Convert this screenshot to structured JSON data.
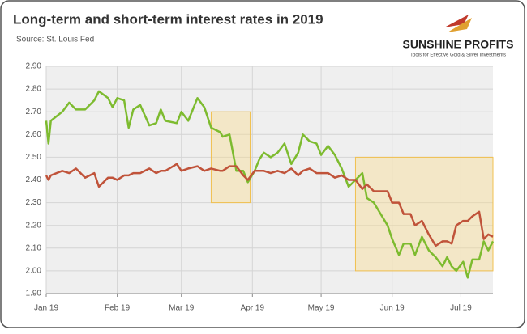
{
  "chart_data": {
    "type": "line",
    "title": "Long-term and short-term interest rates in 2019",
    "subtitle": "Source: St. Louis Fed",
    "logo": {
      "name": "SUNSHINE PROFITS",
      "tagline": "Tools for Effective Gold & Silver Investments"
    },
    "x": [
      1,
      2,
      3,
      8,
      11,
      14,
      18,
      22,
      24,
      28,
      30,
      32,
      35,
      37,
      39,
      42,
      46,
      49,
      51,
      53,
      58,
      60,
      63,
      67,
      70,
      73,
      77,
      78,
      81,
      84,
      87,
      89,
      92,
      94,
      96,
      99,
      102,
      105,
      108,
      111,
      113,
      116,
      119,
      121,
      124,
      127,
      130,
      133,
      136,
      139,
      141,
      144,
      147,
      150,
      152,
      155,
      157,
      160,
      162,
      165,
      168,
      171,
      174,
      176,
      178,
      180,
      183,
      185,
      187,
      190,
      192,
      194,
      196
    ],
    "series": [
      {
        "color": "#7dbb2f",
        "values": [
          2.66,
          2.56,
          2.66,
          2.7,
          2.74,
          2.71,
          2.71,
          2.75,
          2.79,
          2.76,
          2.72,
          2.76,
          2.75,
          2.63,
          2.71,
          2.73,
          2.64,
          2.65,
          2.71,
          2.66,
          2.65,
          2.7,
          2.66,
          2.76,
          2.72,
          2.63,
          2.61,
          2.59,
          2.6,
          2.44,
          2.44,
          2.39,
          2.44,
          2.49,
          2.52,
          2.5,
          2.52,
          2.56,
          2.47,
          2.52,
          2.6,
          2.57,
          2.56,
          2.51,
          2.55,
          2.51,
          2.45,
          2.37,
          2.4,
          2.43,
          2.32,
          2.3,
          2.25,
          2.2,
          2.14,
          2.07,
          2.12,
          2.12,
          2.07,
          2.15,
          2.09,
          2.06,
          2.02,
          2.06,
          2.02,
          2.0,
          2.04,
          1.97,
          2.05,
          2.05,
          2.13,
          2.09,
          2.13
        ]
      },
      {
        "color": "#c0533a",
        "values": [
          2.42,
          2.4,
          2.42,
          2.44,
          2.43,
          2.45,
          2.41,
          2.43,
          2.37,
          2.41,
          2.41,
          2.4,
          2.42,
          2.42,
          2.43,
          2.43,
          2.45,
          2.43,
          2.44,
          2.44,
          2.47,
          2.44,
          2.45,
          2.46,
          2.44,
          2.45,
          2.44,
          2.44,
          2.46,
          2.46,
          2.42,
          2.4,
          2.44,
          2.44,
          2.44,
          2.43,
          2.44,
          2.43,
          2.45,
          2.42,
          2.44,
          2.45,
          2.43,
          2.43,
          2.43,
          2.41,
          2.42,
          2.4,
          2.4,
          2.36,
          2.38,
          2.35,
          2.35,
          2.35,
          2.3,
          2.3,
          2.25,
          2.25,
          2.2,
          2.22,
          2.16,
          2.11,
          2.13,
          2.13,
          2.12,
          2.2,
          2.22,
          2.22,
          2.24,
          2.26,
          2.14,
          2.16,
          2.15
        ]
      }
    ],
    "highlights": [
      {
        "x": [
          73,
          90
        ],
        "y": [
          2.3,
          2.7
        ]
      },
      {
        "x": [
          136,
          196
        ],
        "y": [
          2.0,
          2.5
        ]
      }
    ],
    "xlim": [
      1,
      196
    ],
    "xticks": [
      {
        "value": 1,
        "label": "Jan 19"
      },
      {
        "value": 32,
        "label": "Feb 19"
      },
      {
        "value": 60,
        "label": "Mar 19"
      },
      {
        "value": 91,
        "label": "Apr 19"
      },
      {
        "value": 121,
        "label": "May 19"
      },
      {
        "value": 152,
        "label": "Jun 19"
      },
      {
        "value": 182,
        "label": "Jul 19"
      }
    ],
    "ylim": [
      1.9,
      2.9
    ],
    "yticks": [
      {
        "value": 1.9,
        "label": "1.90"
      },
      {
        "value": 2.0,
        "label": "2.00"
      },
      {
        "value": 2.1,
        "label": "2.10"
      },
      {
        "value": 2.2,
        "label": "2.20"
      },
      {
        "value": 2.3,
        "label": "2.30"
      },
      {
        "value": 2.4,
        "label": "2.40"
      },
      {
        "value": 2.5,
        "label": "2.50"
      },
      {
        "value": 2.6,
        "label": "2.60"
      },
      {
        "value": 2.7,
        "label": "2.70"
      },
      {
        "value": 2.8,
        "label": "2.80"
      },
      {
        "value": 2.9,
        "label": "2.90"
      }
    ],
    "grid": true
  }
}
